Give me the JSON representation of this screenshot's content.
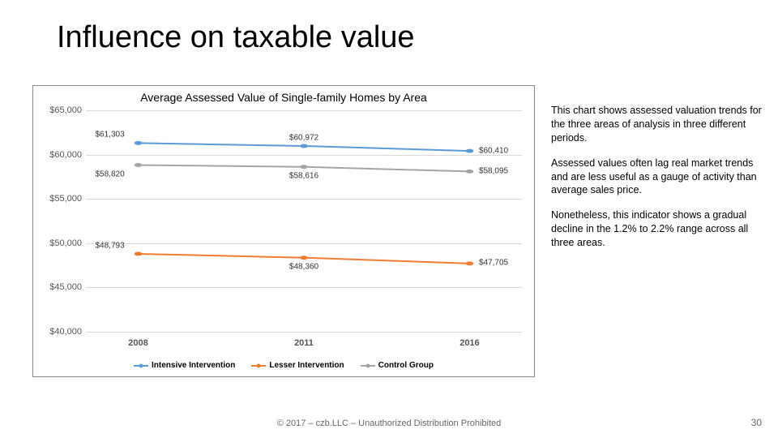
{
  "title": "Influence on taxable value",
  "chart": {
    "type": "line",
    "title": "Average Assessed Value of Single-family Homes by Area",
    "background_color": "#ffffff",
    "grid_color": "#d9d9d9",
    "ylim": [
      40000,
      65000
    ],
    "ytick_step": 5000,
    "yticks": [
      "$65,000",
      "$60,000",
      "$55,000",
      "$50,000",
      "$45,000",
      "$40,000"
    ],
    "xticks": [
      "2008",
      "2011",
      "2016"
    ],
    "x_positions_pct": [
      12,
      50,
      88
    ],
    "line_width": 2,
    "marker_size": 5,
    "series": [
      {
        "name": "Intensive Intervention",
        "color": "#5b9bd5",
        "values": [
          61303,
          60972,
          60410
        ],
        "labels": [
          "$61,303",
          "$60,972",
          "$60,410"
        ]
      },
      {
        "name": "Lesser Intervention",
        "color": "#ed7d31",
        "values": [
          48793,
          48360,
          47705
        ],
        "labels": [
          "$48,793",
          "$48,360",
          "$47,705"
        ]
      },
      {
        "name": "Control Group",
        "color": "#a5a5a5",
        "values": [
          58820,
          58616,
          58095
        ],
        "labels": [
          "$58,820",
          "$58,616",
          "$58,095"
        ]
      }
    ]
  },
  "side_paragraphs": [
    "This chart shows assessed valuation trends for the three areas of analysis in three different periods.",
    "Assessed values often lag real market trends and are less useful as a gauge of activity than average sales price.",
    "Nonetheless, this indicator shows a gradual decline in the 1.2% to 2.2% range across all three areas."
  ],
  "footer": "© 2017 – czb.LLC – Unauthorized Distribution Prohibited",
  "page_number": "30"
}
